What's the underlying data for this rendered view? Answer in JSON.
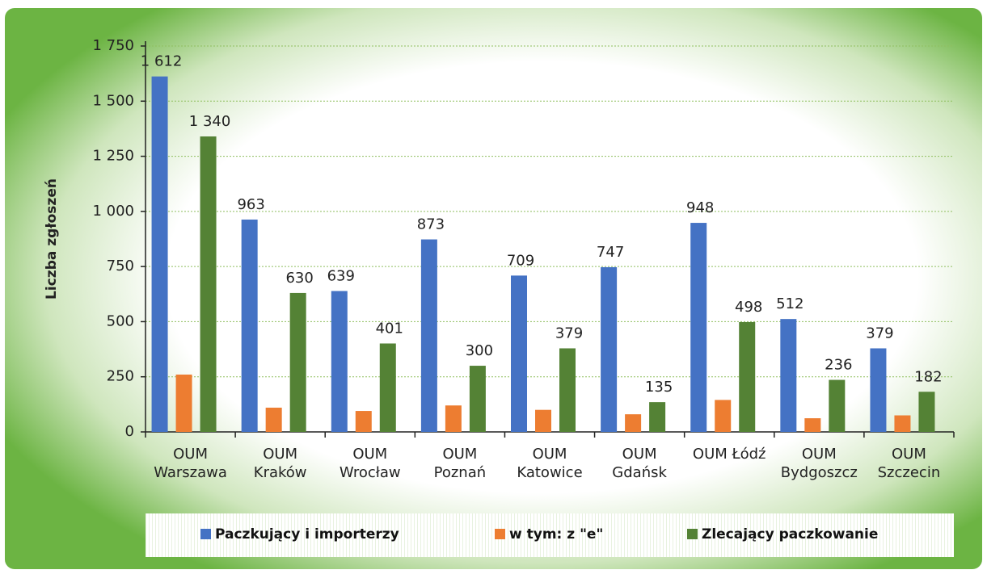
{
  "chart_data": {
    "type": "bar",
    "y_label": "Liczba zgłoszeń",
    "categories": [
      "OUM Warszawa",
      "OUM Kraków",
      "OUM Wrocław",
      "OUM Poznań",
      "OUM Katowice",
      "OUM Gdańsk",
      "OUM Łódź",
      "OUM Bydgoszcz",
      "OUM Szczecin"
    ],
    "series": [
      {
        "name": "Paczkujący i importerzy",
        "color": "#4472c4",
        "values": [
          1612,
          963,
          639,
          873,
          709,
          747,
          948,
          512,
          379
        ],
        "value_labels": [
          "1 612",
          "963",
          "639",
          "873",
          "709",
          "747",
          "948",
          "512",
          "379"
        ]
      },
      {
        "name": "w tym: z \"e\"",
        "color": "#ed7d31",
        "values": [
          260,
          110,
          95,
          120,
          100,
          80,
          145,
          62,
          75
        ]
      },
      {
        "name": "Zlecający paczkowanie",
        "color": "#548235",
        "values": [
          1340,
          630,
          401,
          300,
          379,
          135,
          498,
          236,
          182
        ],
        "value_labels": [
          "1 340",
          "630",
          "401",
          "300",
          "379",
          "135",
          "498",
          "236",
          "182"
        ]
      }
    ],
    "ylim": [
      0,
      1750
    ],
    "yticks": [
      0,
      250,
      500,
      750,
      {
        "value": 1000,
        "label": "1 000"
      },
      {
        "value": 1250,
        "label": "1 250"
      },
      {
        "value": 1500,
        "label": "1 500"
      },
      {
        "value": 1750,
        "label": "1 750"
      }
    ],
    "grid": true,
    "legend": "bottom"
  }
}
